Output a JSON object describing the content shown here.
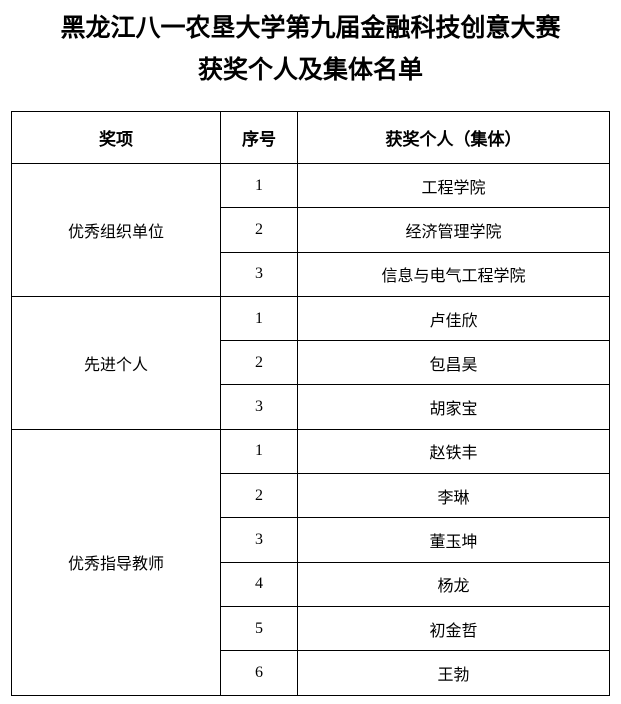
{
  "title": {
    "line1": "黑龙江八一农垦大学第九届金融科技创意大赛",
    "line2": "获奖个人及集体名单"
  },
  "table": {
    "headers": [
      "奖项",
      "序号",
      "获奖个人（集体）"
    ],
    "groups": [
      {
        "award": "优秀组织单位",
        "rows": [
          {
            "no": "1",
            "name": "工程学院"
          },
          {
            "no": "2",
            "name": "经济管理学院"
          },
          {
            "no": "3",
            "name": "信息与电气工程学院"
          }
        ]
      },
      {
        "award": "先进个人",
        "rows": [
          {
            "no": "1",
            "name": "卢佳欣"
          },
          {
            "no": "2",
            "name": "包昌昊"
          },
          {
            "no": "3",
            "name": "胡家宝"
          }
        ]
      },
      {
        "award": "优秀指导教师",
        "rows": [
          {
            "no": "1",
            "name": "赵铁丰"
          },
          {
            "no": "2",
            "name": "李琳"
          },
          {
            "no": "3",
            "name": "董玉坤"
          },
          {
            "no": "4",
            "name": "杨龙"
          },
          {
            "no": "5",
            "name": "初金哲"
          },
          {
            "no": "6",
            "name": "王勃"
          }
        ]
      }
    ]
  }
}
